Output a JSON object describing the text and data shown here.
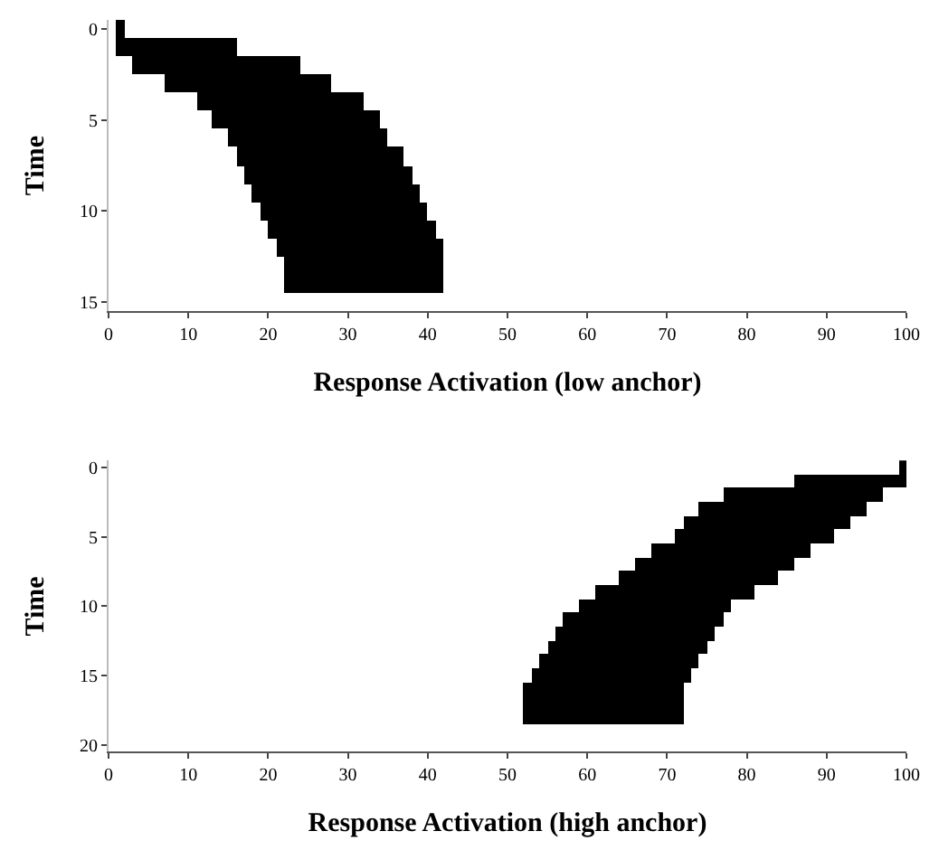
{
  "chart_data": [
    {
      "type": "bar",
      "orientation": "horizontal",
      "xlabel": "Response Activation (low anchor)",
      "ylabel": "Time",
      "categories": [
        "0",
        null,
        null,
        null,
        null,
        "5",
        null,
        null,
        null,
        null,
        "10",
        null,
        null,
        null,
        null,
        "15"
      ],
      "base": [
        1,
        1,
        3,
        7,
        11,
        13,
        15,
        16,
        17,
        18,
        19,
        20,
        21,
        22,
        22,
        null
      ],
      "values": [
        1,
        15,
        21,
        21,
        21,
        21,
        20,
        21,
        21,
        21,
        21,
        21,
        21,
        20,
        20,
        null
      ],
      "color": "#000000",
      "xlim": [
        0,
        100
      ],
      "xticks": [
        0,
        10,
        20,
        30,
        40,
        50,
        60,
        70,
        80,
        90,
        100
      ]
    },
    {
      "type": "bar",
      "orientation": "horizontal",
      "xlabel": "Response Activation (high anchor)",
      "ylabel": "Time",
      "categories": [
        "0",
        null,
        null,
        null,
        null,
        "5",
        null,
        null,
        null,
        null,
        "10",
        null,
        null,
        null,
        null,
        "15",
        null,
        null,
        null,
        null,
        "20"
      ],
      "base": [
        99,
        86,
        77,
        74,
        72,
        71,
        68,
        66,
        64,
        61,
        59,
        57,
        56,
        55,
        54,
        53,
        52,
        52,
        52,
        null,
        null
      ],
      "values": [
        1,
        14,
        20,
        21,
        21,
        20,
        20,
        20,
        20,
        20,
        19,
        20,
        20,
        20,
        20,
        20,
        20,
        20,
        20,
        null,
        null
      ],
      "color": "#000000",
      "xlim": [
        0,
        100
      ],
      "xticks": [
        0,
        10,
        20,
        30,
        40,
        50,
        60,
        70,
        80,
        90,
        100
      ]
    }
  ]
}
